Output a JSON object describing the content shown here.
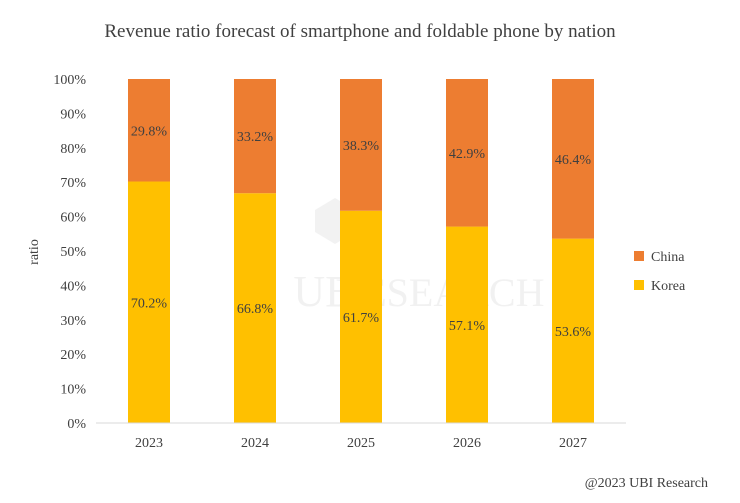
{
  "chart_data": {
    "type": "bar",
    "stacked": true,
    "title": "Revenue ratio forecast of smartphone and foldable phone by nation",
    "ylabel": "ratio",
    "xlabel": "",
    "categories": [
      "2023",
      "2024",
      "2025",
      "2026",
      "2027"
    ],
    "ylim": [
      0,
      100
    ],
    "yticks": [
      "0%",
      "10%",
      "20%",
      "30%",
      "40%",
      "50%",
      "60%",
      "70%",
      "80%",
      "90%",
      "100%"
    ],
    "series": [
      {
        "name": "Korea",
        "color": "#FFC000",
        "values": [
          70.2,
          66.8,
          61.7,
          57.1,
          53.6
        ],
        "labels": [
          "70.2%",
          "66.8%",
          "61.7%",
          "57.1%",
          "53.6%"
        ]
      },
      {
        "name": "China",
        "color": "#ED7D31",
        "values": [
          29.8,
          33.2,
          38.3,
          42.9,
          46.4
        ],
        "labels": [
          "29.8%",
          "33.2%",
          "38.3%",
          "42.9%",
          "46.4%"
        ]
      }
    ],
    "legend_position": "right",
    "grid": false,
    "watermark": "UBI RESEARCH",
    "credit": "@2023 UBI Research"
  }
}
